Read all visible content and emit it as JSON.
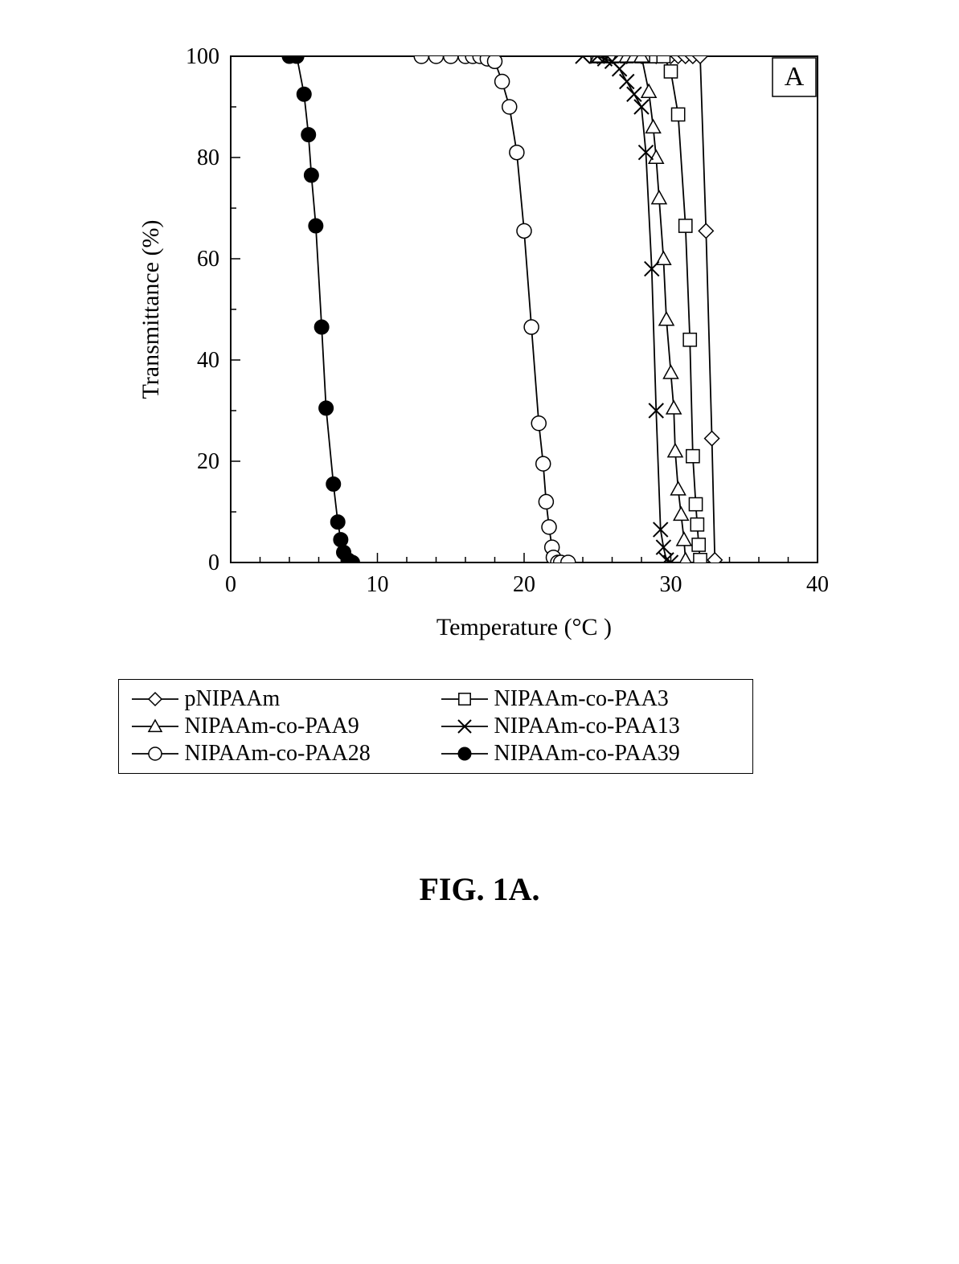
{
  "figure_caption": "FIG. 1A.",
  "panel_label": "A",
  "x_axis": {
    "label": "Temperature (°C )",
    "min": 0,
    "max": 40,
    "major_ticks": [
      0,
      10,
      20,
      30,
      40
    ],
    "minor_step": 2,
    "label_fontsize": 30,
    "tick_fontsize": 28
  },
  "y_axis": {
    "label": "Transmittance (%)",
    "min": 0,
    "max": 100,
    "major_ticks": [
      0,
      20,
      40,
      60,
      80,
      100
    ],
    "minor_step": 10,
    "label_fontsize": 30,
    "tick_fontsize": 28
  },
  "plot": {
    "bg": "#ffffff",
    "border_color": "#000000",
    "border_width": 2,
    "line_color": "#000000",
    "line_width": 1.8,
    "marker_size": 9
  },
  "series": [
    {
      "name": "pNIPAAm",
      "marker": "diamond-open",
      "data": [
        [
          25,
          100
        ],
        [
          26,
          100
        ],
        [
          27,
          100
        ],
        [
          28,
          100
        ],
        [
          29,
          100
        ],
        [
          30,
          100
        ],
        [
          30.5,
          100
        ],
        [
          31,
          100
        ],
        [
          31.5,
          100
        ],
        [
          32,
          100
        ],
        [
          32.4,
          65.5
        ],
        [
          32.8,
          24.5
        ],
        [
          33,
          0.5
        ]
      ]
    },
    {
      "name": "NIPAAm-co-PAA3",
      "marker": "square-open",
      "data": [
        [
          25,
          100
        ],
        [
          26,
          100
        ],
        [
          27,
          100
        ],
        [
          28,
          100
        ],
        [
          28.5,
          100
        ],
        [
          29,
          100
        ],
        [
          29.5,
          100
        ],
        [
          30,
          97
        ],
        [
          30.5,
          88.5
        ],
        [
          31,
          66.5
        ],
        [
          31.3,
          44
        ],
        [
          31.5,
          21
        ],
        [
          31.7,
          11.5
        ],
        [
          31.8,
          7.5
        ],
        [
          31.9,
          3.5
        ],
        [
          32,
          0.5
        ]
      ]
    },
    {
      "name": "NIPAAm-co-PAA9",
      "marker": "triangle-open",
      "data": [
        [
          25,
          100
        ],
        [
          26,
          100
        ],
        [
          26.5,
          100
        ],
        [
          27,
          100
        ],
        [
          27.5,
          100
        ],
        [
          28,
          100
        ],
        [
          28.5,
          93
        ],
        [
          28.8,
          86
        ],
        [
          29,
          80
        ],
        [
          29.2,
          72
        ],
        [
          29.5,
          60
        ],
        [
          29.7,
          48
        ],
        [
          30,
          37.5
        ],
        [
          30.2,
          30.5
        ],
        [
          30.3,
          22
        ],
        [
          30.5,
          14.5
        ],
        [
          30.7,
          9.5
        ],
        [
          30.9,
          4.5
        ],
        [
          31,
          0.5
        ]
      ]
    },
    {
      "name": "NIPAAm-co-PAA13",
      "marker": "x",
      "data": [
        [
          24,
          100
        ],
        [
          25,
          100
        ],
        [
          25.5,
          99.5
        ],
        [
          26,
          99
        ],
        [
          26.5,
          97.5
        ],
        [
          27,
          95
        ],
        [
          27.5,
          92.5
        ],
        [
          28,
          90
        ],
        [
          28.3,
          81
        ],
        [
          28.7,
          58
        ],
        [
          29,
          30
        ],
        [
          29.3,
          6.5
        ],
        [
          29.5,
          3
        ],
        [
          29.7,
          0.5
        ],
        [
          30,
          0
        ]
      ]
    },
    {
      "name": "NIPAAm-co-PAA28",
      "marker": "circle-open",
      "data": [
        [
          13,
          100
        ],
        [
          14,
          100
        ],
        [
          15,
          100
        ],
        [
          16,
          100
        ],
        [
          16.5,
          100
        ],
        [
          17,
          100
        ],
        [
          17.5,
          99.5
        ],
        [
          18,
          99
        ],
        [
          18.5,
          95
        ],
        [
          19,
          90
        ],
        [
          19.5,
          81
        ],
        [
          20,
          65.5
        ],
        [
          20.5,
          46.5
        ],
        [
          21,
          27.5
        ],
        [
          21.3,
          19.5
        ],
        [
          21.5,
          12
        ],
        [
          21.7,
          7
        ],
        [
          21.9,
          3
        ],
        [
          22,
          1
        ],
        [
          22.3,
          0
        ],
        [
          22.5,
          0
        ],
        [
          23,
          0
        ]
      ]
    },
    {
      "name": "NIPAAm-co-PAA39",
      "marker": "circle-filled",
      "data": [
        [
          4,
          100
        ],
        [
          4.5,
          100
        ],
        [
          5,
          92.5
        ],
        [
          5.3,
          84.5
        ],
        [
          5.5,
          76.5
        ],
        [
          5.8,
          66.5
        ],
        [
          6.2,
          46.5
        ],
        [
          6.5,
          30.5
        ],
        [
          7,
          15.5
        ],
        [
          7.3,
          8
        ],
        [
          7.5,
          4.5
        ],
        [
          7.7,
          2
        ],
        [
          8,
          0.5
        ],
        [
          8.3,
          0
        ]
      ]
    }
  ],
  "legend_order": [
    [
      "pNIPAAm",
      "NIPAAm-co-PAA3"
    ],
    [
      "NIPAAm-co-PAA9",
      "NIPAAm-co-PAA13"
    ],
    [
      "NIPAAm-co-PAA28",
      "NIPAAm-co-PAA39"
    ]
  ]
}
